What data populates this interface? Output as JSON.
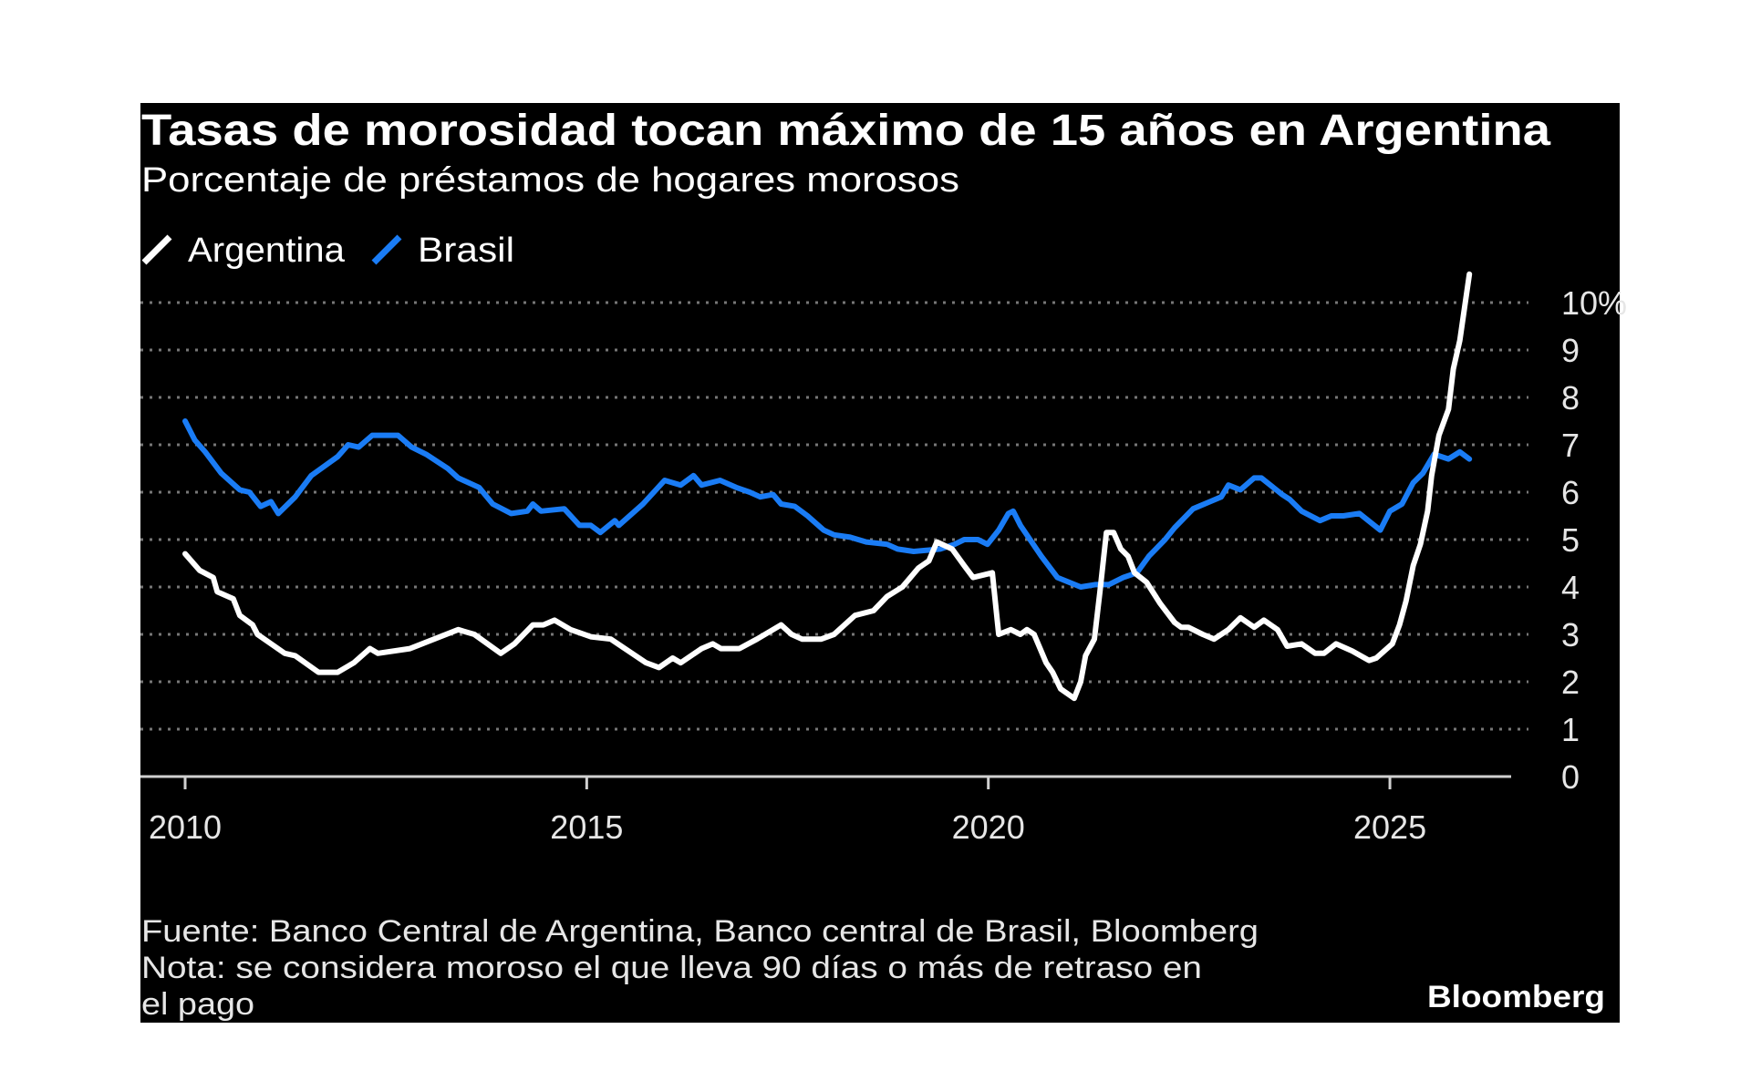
{
  "chart_data": {
    "type": "line",
    "title": "Tasas de morosidad tocan máximo de 15 años en Argentina",
    "subtitle": "Porcentaje de préstamos de hogares morosos",
    "xlabel": "",
    "ylabel": "",
    "xlim": [
      2010,
      2026
    ],
    "ylim": [
      0,
      10
    ],
    "x_ticks": [
      "2010",
      "2015",
      "2020",
      "2025"
    ],
    "y_ticks": [
      "0",
      "1",
      "2",
      "3",
      "4",
      "5",
      "6",
      "7",
      "8",
      "9",
      "10%"
    ],
    "grid": "horizontal dotted",
    "legend_position": "top-left",
    "series": [
      {
        "name": "Argentina",
        "color": "#ffffff",
        "points": [
          [
            2010.0,
            4.7
          ],
          [
            2010.18,
            4.35
          ],
          [
            2010.35,
            4.2
          ],
          [
            2010.4,
            3.9
          ],
          [
            2010.6,
            3.75
          ],
          [
            2010.68,
            3.4
          ],
          [
            2010.84,
            3.2
          ],
          [
            2010.9,
            3.0
          ],
          [
            2011.24,
            2.6
          ],
          [
            2011.37,
            2.55
          ],
          [
            2011.66,
            2.2
          ],
          [
            2011.9,
            2.2
          ],
          [
            2012.1,
            2.4
          ],
          [
            2012.3,
            2.7
          ],
          [
            2012.4,
            2.6
          ],
          [
            2012.8,
            2.7
          ],
          [
            2013.1,
            2.9
          ],
          [
            2013.4,
            3.1
          ],
          [
            2013.6,
            3.0
          ],
          [
            2013.93,
            2.6
          ],
          [
            2014.1,
            2.8
          ],
          [
            2014.33,
            3.2
          ],
          [
            2014.46,
            3.2
          ],
          [
            2014.6,
            3.3
          ],
          [
            2014.8,
            3.1
          ],
          [
            2015.05,
            2.95
          ],
          [
            2015.3,
            2.9
          ],
          [
            2015.74,
            2.4
          ],
          [
            2015.9,
            2.3
          ],
          [
            2016.07,
            2.5
          ],
          [
            2016.17,
            2.4
          ],
          [
            2016.43,
            2.7
          ],
          [
            2016.57,
            2.8
          ],
          [
            2016.67,
            2.7
          ],
          [
            2016.9,
            2.7
          ],
          [
            2017.12,
            2.9
          ],
          [
            2017.42,
            3.2
          ],
          [
            2017.55,
            3.0
          ],
          [
            2017.68,
            2.9
          ],
          [
            2017.92,
            2.9
          ],
          [
            2018.08,
            3.0
          ],
          [
            2018.34,
            3.4
          ],
          [
            2018.57,
            3.5
          ],
          [
            2018.74,
            3.8
          ],
          [
            2018.93,
            4.0
          ],
          [
            2019.13,
            4.4
          ],
          [
            2019.26,
            4.55
          ],
          [
            2019.36,
            4.95
          ],
          [
            2019.55,
            4.8
          ],
          [
            2019.7,
            4.45
          ],
          [
            2019.81,
            4.2
          ],
          [
            2020.05,
            4.3
          ],
          [
            2020.13,
            3.0
          ],
          [
            2020.28,
            3.1
          ],
          [
            2020.4,
            3.0
          ],
          [
            2020.48,
            3.1
          ],
          [
            2020.57,
            3.0
          ],
          [
            2020.72,
            2.4
          ],
          [
            2020.8,
            2.2
          ],
          [
            2020.9,
            1.85
          ],
          [
            2021.07,
            1.65
          ],
          [
            2021.15,
            2.0
          ],
          [
            2021.21,
            2.55
          ],
          [
            2021.32,
            2.9
          ],
          [
            2021.39,
            3.9
          ],
          [
            2021.47,
            5.15
          ],
          [
            2021.56,
            5.15
          ],
          [
            2021.65,
            4.8
          ],
          [
            2021.74,
            4.65
          ],
          [
            2021.82,
            4.3
          ],
          [
            2021.97,
            4.1
          ],
          [
            2022.14,
            3.65
          ],
          [
            2022.32,
            3.25
          ],
          [
            2022.4,
            3.15
          ],
          [
            2022.49,
            3.15
          ],
          [
            2022.67,
            3.0
          ],
          [
            2022.81,
            2.9
          ],
          [
            2022.99,
            3.1
          ],
          [
            2023.14,
            3.35
          ],
          [
            2023.31,
            3.15
          ],
          [
            2023.43,
            3.3
          ],
          [
            2023.6,
            3.1
          ],
          [
            2023.72,
            2.75
          ],
          [
            2023.9,
            2.8
          ],
          [
            2024.07,
            2.6
          ],
          [
            2024.18,
            2.6
          ],
          [
            2024.33,
            2.8
          ],
          [
            2024.53,
            2.65
          ],
          [
            2024.74,
            2.45
          ],
          [
            2024.83,
            2.5
          ],
          [
            2025.03,
            2.8
          ],
          [
            2025.12,
            3.2
          ],
          [
            2025.2,
            3.7
          ],
          [
            2025.29,
            4.45
          ],
          [
            2025.38,
            4.9
          ],
          [
            2025.47,
            5.6
          ],
          [
            2025.52,
            6.35
          ],
          [
            2025.61,
            7.2
          ],
          [
            2025.73,
            7.75
          ],
          [
            2025.79,
            8.6
          ],
          [
            2025.87,
            9.2
          ],
          [
            2025.99,
            10.6
          ]
        ]
      },
      {
        "name": "Brasil",
        "color": "#1a7cf5",
        "points": [
          [
            2010.0,
            7.5
          ],
          [
            2010.12,
            7.1
          ],
          [
            2010.25,
            6.85
          ],
          [
            2010.45,
            6.4
          ],
          [
            2010.68,
            6.05
          ],
          [
            2010.8,
            6.0
          ],
          [
            2010.94,
            5.7
          ],
          [
            2011.07,
            5.8
          ],
          [
            2011.16,
            5.55
          ],
          [
            2011.37,
            5.9
          ],
          [
            2011.57,
            6.35
          ],
          [
            2011.9,
            6.75
          ],
          [
            2012.03,
            7.0
          ],
          [
            2012.16,
            6.95
          ],
          [
            2012.33,
            7.2
          ],
          [
            2012.65,
            7.2
          ],
          [
            2012.82,
            6.95
          ],
          [
            2013.0,
            6.8
          ],
          [
            2013.27,
            6.5
          ],
          [
            2013.4,
            6.3
          ],
          [
            2013.66,
            6.1
          ],
          [
            2013.83,
            5.75
          ],
          [
            2014.06,
            5.55
          ],
          [
            2014.26,
            5.6
          ],
          [
            2014.33,
            5.75
          ],
          [
            2014.43,
            5.6
          ],
          [
            2014.72,
            5.65
          ],
          [
            2014.91,
            5.3
          ],
          [
            2015.05,
            5.3
          ],
          [
            2015.17,
            5.15
          ],
          [
            2015.35,
            5.4
          ],
          [
            2015.4,
            5.3
          ],
          [
            2015.7,
            5.75
          ],
          [
            2015.97,
            6.25
          ],
          [
            2016.17,
            6.15
          ],
          [
            2016.33,
            6.35
          ],
          [
            2016.43,
            6.15
          ],
          [
            2016.66,
            6.25
          ],
          [
            2016.86,
            6.1
          ],
          [
            2017.03,
            6.0
          ],
          [
            2017.16,
            5.9
          ],
          [
            2017.32,
            5.95
          ],
          [
            2017.42,
            5.75
          ],
          [
            2017.59,
            5.7
          ],
          [
            2017.75,
            5.5
          ],
          [
            2017.95,
            5.2
          ],
          [
            2018.08,
            5.1
          ],
          [
            2018.28,
            5.05
          ],
          [
            2018.48,
            4.95
          ],
          [
            2018.74,
            4.9
          ],
          [
            2018.87,
            4.8
          ],
          [
            2019.07,
            4.75
          ],
          [
            2019.4,
            4.8
          ],
          [
            2019.58,
            4.9
          ],
          [
            2019.7,
            5.0
          ],
          [
            2019.87,
            5.0
          ],
          [
            2019.99,
            4.9
          ],
          [
            2020.13,
            5.2
          ],
          [
            2020.25,
            5.55
          ],
          [
            2020.31,
            5.6
          ],
          [
            2020.4,
            5.3
          ],
          [
            2020.66,
            4.65
          ],
          [
            2020.86,
            4.2
          ],
          [
            2021.15,
            4.0
          ],
          [
            2021.33,
            4.05
          ],
          [
            2021.5,
            4.05
          ],
          [
            2021.68,
            4.2
          ],
          [
            2021.85,
            4.3
          ],
          [
            2022.0,
            4.65
          ],
          [
            2022.2,
            5.0
          ],
          [
            2022.32,
            5.25
          ],
          [
            2022.55,
            5.65
          ],
          [
            2022.76,
            5.8
          ],
          [
            2022.9,
            5.9
          ],
          [
            2022.99,
            6.15
          ],
          [
            2023.14,
            6.05
          ],
          [
            2023.31,
            6.3
          ],
          [
            2023.4,
            6.3
          ],
          [
            2023.66,
            5.95
          ],
          [
            2023.75,
            5.85
          ],
          [
            2023.9,
            5.6
          ],
          [
            2024.13,
            5.4
          ],
          [
            2024.27,
            5.5
          ],
          [
            2024.42,
            5.5
          ],
          [
            2024.62,
            5.55
          ],
          [
            2024.88,
            5.2
          ],
          [
            2025.0,
            5.6
          ],
          [
            2025.15,
            5.75
          ],
          [
            2025.29,
            6.2
          ],
          [
            2025.41,
            6.4
          ],
          [
            2025.55,
            6.8
          ],
          [
            2025.73,
            6.7
          ],
          [
            2025.87,
            6.85
          ],
          [
            2025.99,
            6.7
          ]
        ]
      }
    ]
  },
  "legend": [
    "Argentina",
    "Brasil"
  ],
  "footer": {
    "source": "Fuente: Banco Central de Argentina, Banco central de Brasil, Bloomberg",
    "note_line1": "Nota: se considera moroso el que lleva 90 días o más de retraso en",
    "note_line2": "el pago",
    "logo": "Bloomberg"
  },
  "colors": {
    "background": "#000000",
    "argentina": "#ffffff",
    "brasil": "#1a7cf5",
    "grid": "#777777"
  }
}
